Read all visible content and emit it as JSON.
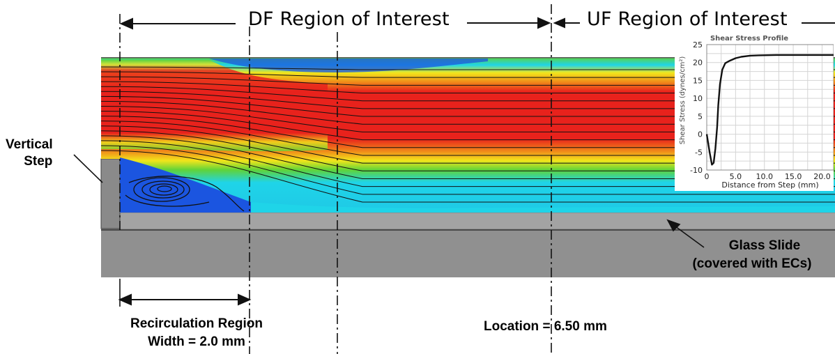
{
  "labels": {
    "df_region": "DF Region of Interest",
    "uf_region": "UF Region of Interest",
    "vertical_step_1": "Vertical",
    "vertical_step_2": "Step",
    "glass_slide_1": "Glass Slide",
    "glass_slide_2": "(covered with ECs)",
    "recirc_1": "Recirculation Region",
    "recirc_2": "Width = 2.0 mm",
    "location": "Location = 6.50 mm"
  },
  "colors": {
    "red": "#e8221c",
    "orange": "#f08a1a",
    "yellow": "#f2e51b",
    "green": "#5fd33a",
    "cyan": "#1fd4e8",
    "blue": "#1b55e0",
    "gray": "#909090"
  },
  "chart_data": {
    "type": "line",
    "title": "Shear Stress Profile",
    "xlabel": "Distance from Step (mm)",
    "ylabel": "Shear Stress (dynes/cm²)",
    "xlim": [
      0,
      22
    ],
    "ylim": [
      -10,
      25
    ],
    "xticks": [
      "0",
      "5.0",
      "10.0",
      "15.0",
      "20.0"
    ],
    "yticks": [
      "25",
      "20",
      "15",
      "10",
      "5",
      "0",
      "-5",
      "-10"
    ],
    "grid": true,
    "series": [
      {
        "x": [
          0,
          0.5,
          0.9,
          1.2,
          1.5,
          1.8,
          2.0,
          2.3,
          2.7,
          3.2,
          4.0,
          5.0,
          6.0,
          7.5,
          9.0,
          12.0,
          15.0,
          18.0,
          22.0
        ],
        "values": [
          0,
          -5,
          -8.5,
          -8,
          -4,
          2,
          8,
          14,
          18,
          19.8,
          20.5,
          21.2,
          21.6,
          21.9,
          22.0,
          22.1,
          22.1,
          22.1,
          22.1
        ]
      }
    ]
  }
}
